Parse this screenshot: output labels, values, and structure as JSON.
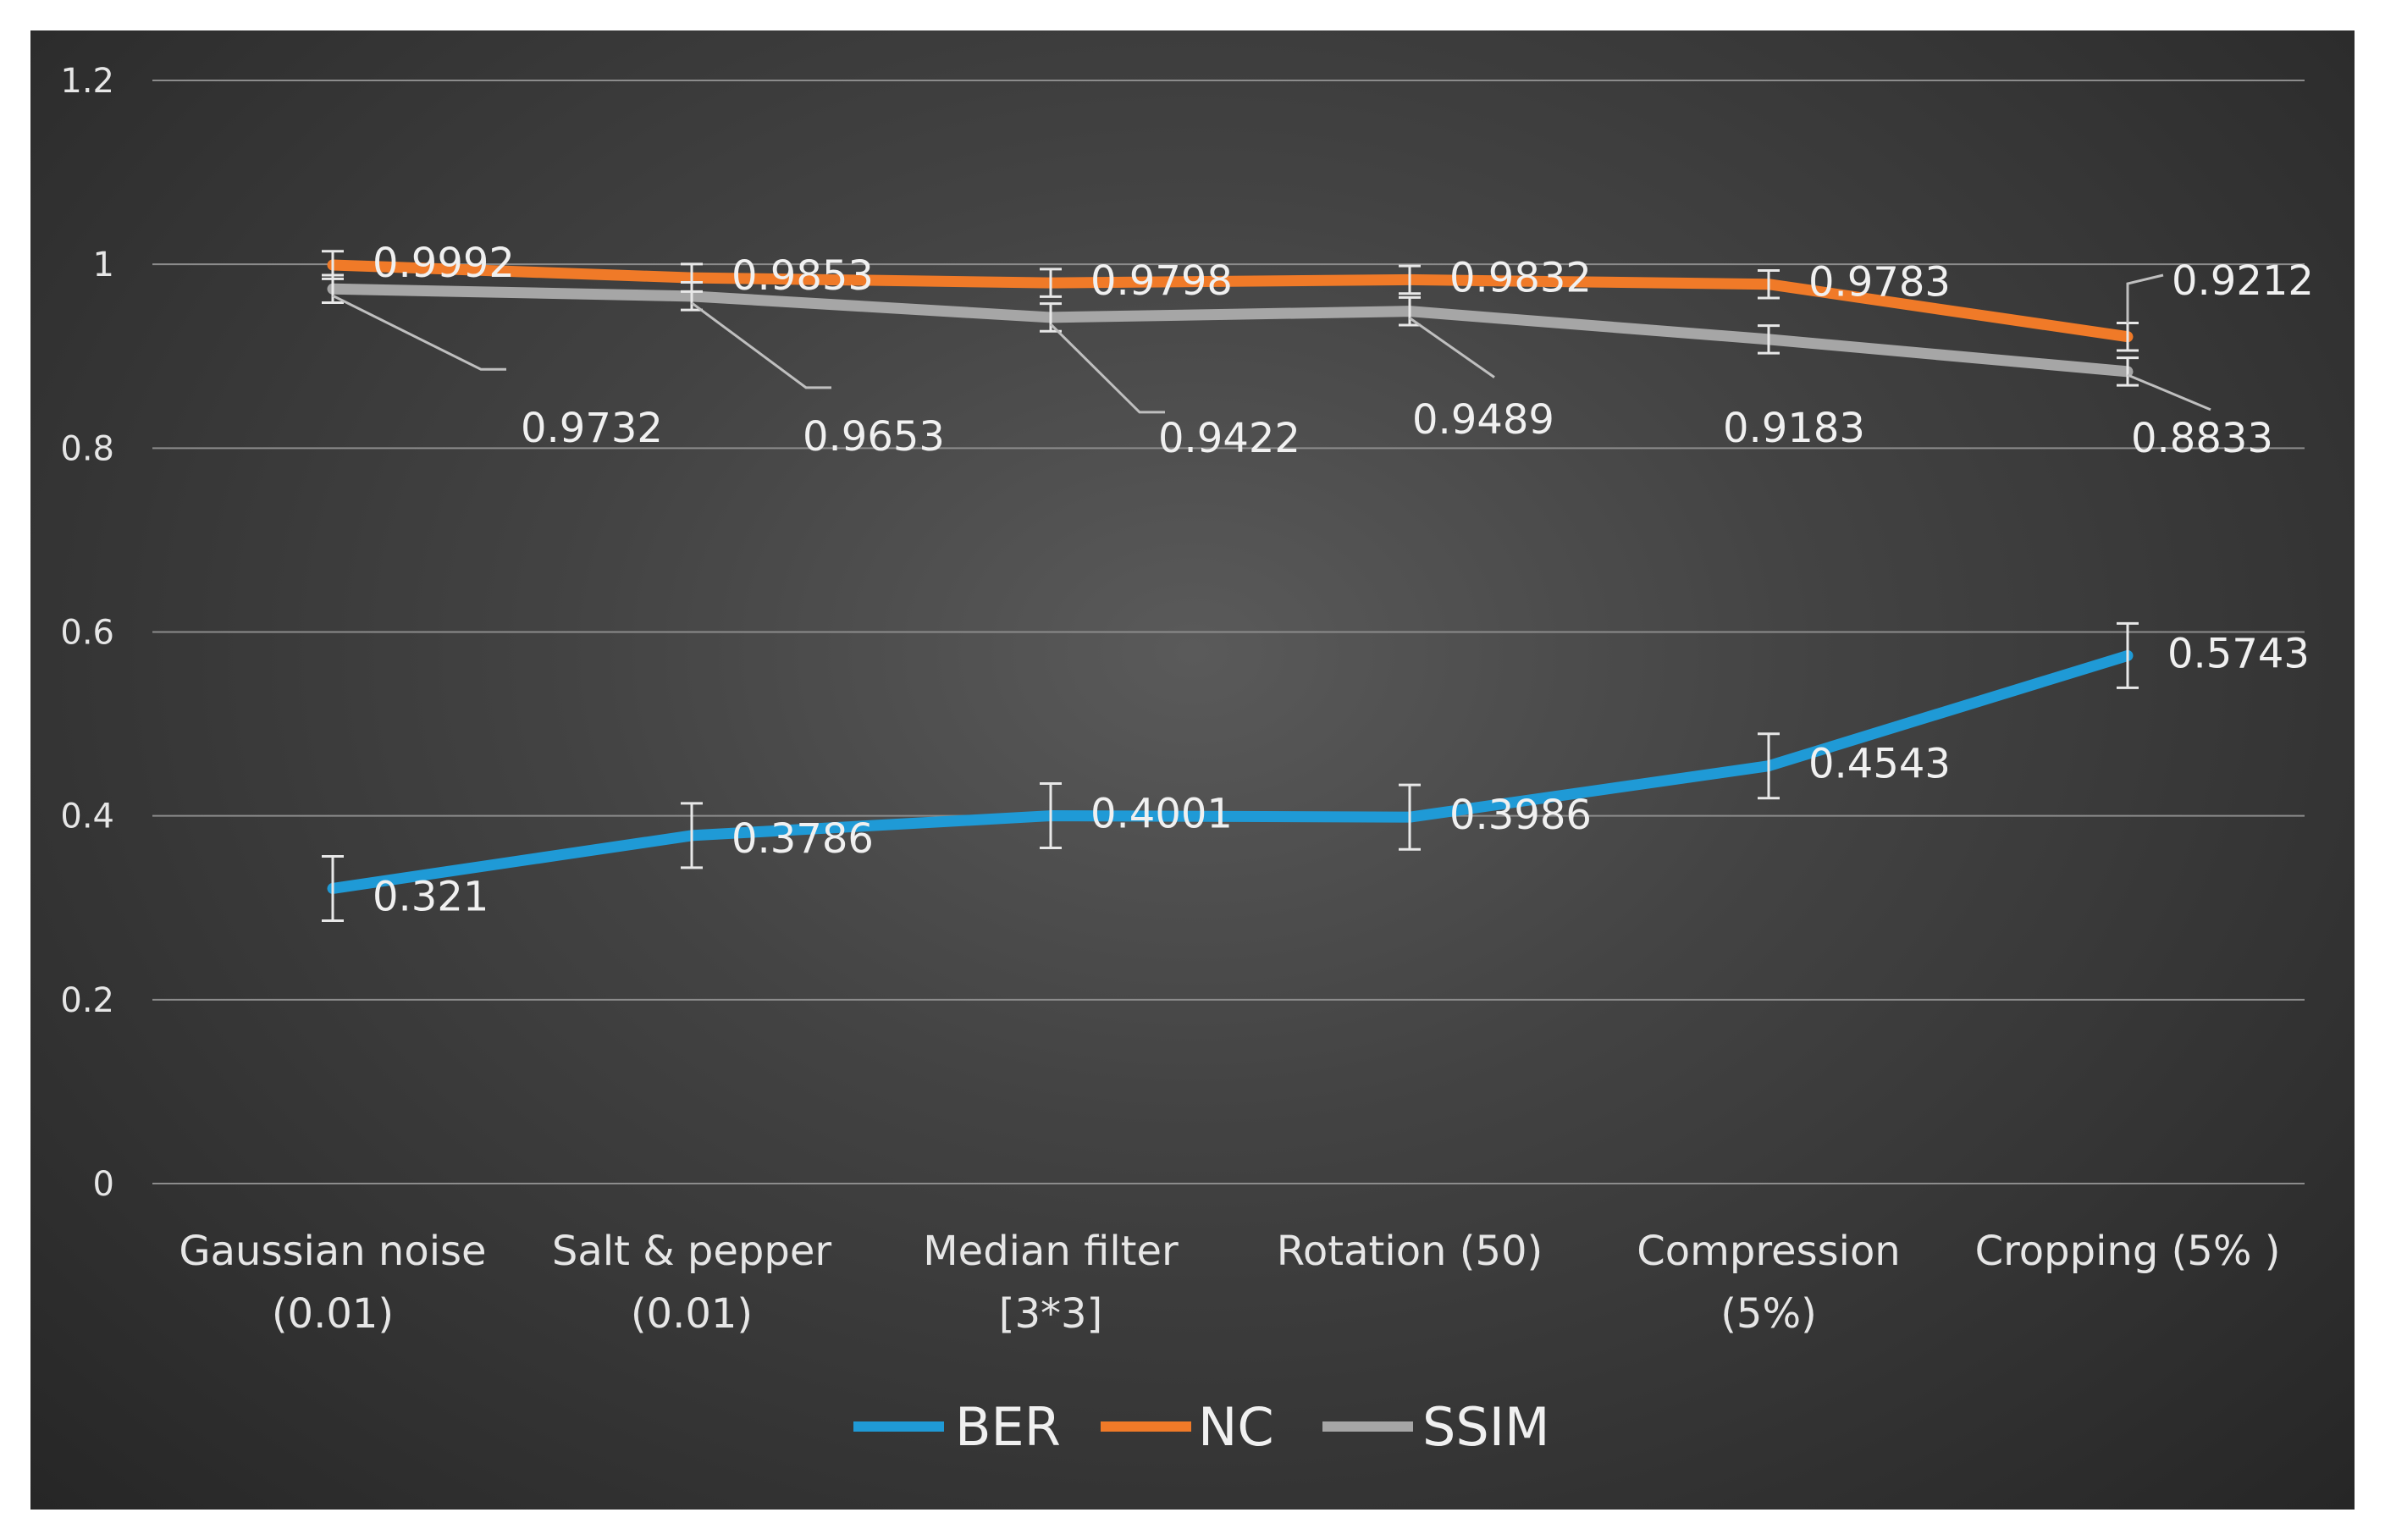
{
  "chart_data": {
    "type": "line",
    "title": "",
    "xlabel": "",
    "ylabel": "",
    "ylim": [
      0,
      1.2
    ],
    "yticks": [
      "0",
      "0.2",
      "0.4",
      "0.6",
      "0.8",
      "1",
      "1.2"
    ],
    "categories": [
      [
        "Gaussian noise",
        "(0.01)"
      ],
      [
        "Salt & pepper",
        "(0.01)"
      ],
      [
        "Median filter",
        "[3*3]"
      ],
      [
        "Rotation (50)"
      ],
      [
        "Compression",
        "(5%)"
      ],
      [
        "Cropping (5% )"
      ]
    ],
    "series": [
      {
        "name": "BER",
        "color": "#1f9ad6",
        "values": [
          0.321,
          0.3786,
          0.4001,
          0.3986,
          0.4543,
          0.5743
        ],
        "labels": [
          "0.321",
          "0.3786",
          "0.4001",
          "0.3986",
          "0.4543",
          "0.5743"
        ],
        "error": 0.035
      },
      {
        "name": "NC",
        "color": "#f07a28",
        "values": [
          0.9992,
          0.9853,
          0.9798,
          0.9832,
          0.9783,
          0.9212
        ],
        "labels": [
          "0.9992",
          "0.9853",
          "0.9798",
          "0.9832",
          "0.9783",
          "0.9212"
        ],
        "error": 0.015
      },
      {
        "name": "SSIM",
        "color": "#a6a6a6",
        "values": [
          0.9732,
          0.9653,
          0.9422,
          0.9489,
          0.9183,
          0.8833
        ],
        "labels": [
          "0.9732",
          "0.9653",
          "0.9422",
          "0.9489",
          "0.9183",
          "0.8833"
        ],
        "error": 0.015
      }
    ],
    "legend": "bottom-center",
    "grid": true
  }
}
